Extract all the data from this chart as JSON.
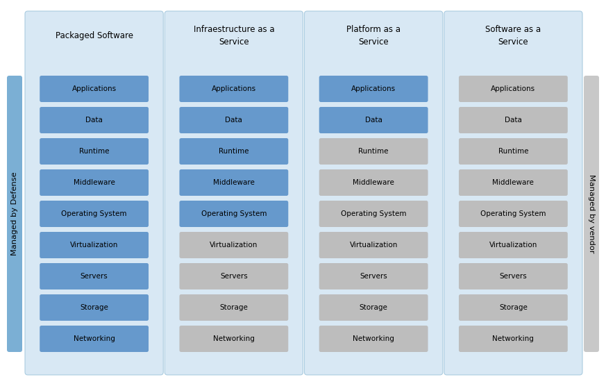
{
  "columns": [
    {
      "title": "Packaged Software",
      "items": [
        "Applications",
        "Data",
        "Runtime",
        "Middleware",
        "Operating System",
        "Virtualization",
        "Servers",
        "Storage",
        "Networking"
      ],
      "blue_count": 9
    },
    {
      "title": "Infraestructure as a\nService",
      "items": [
        "Applications",
        "Data",
        "Runtime",
        "Middleware",
        "Operating System",
        "Virtualization",
        "Servers",
        "Storage",
        "Networking"
      ],
      "blue_count": 5
    },
    {
      "title": "Platform as a\nService",
      "items": [
        "Applications",
        "Data",
        "Runtime",
        "Middleware",
        "Operating System",
        "Virtualization",
        "Servers",
        "Storage",
        "Networking"
      ],
      "blue_count": 2
    },
    {
      "title": "Software as a\nService",
      "items": [
        "Applications",
        "Data",
        "Runtime",
        "Middleware",
        "Operating System",
        "Virtualization",
        "Servers",
        "Storage",
        "Networking"
      ],
      "blue_count": 0
    }
  ],
  "blue_box_color": "#6699CC",
  "gray_box_color": "#BDBDBD",
  "col_bg_color": "#D8E8F4",
  "left_bar_color": "#7BAFD4",
  "right_bar_color": "#C8C8C8",
  "left_bar_label": "Managed by Defense",
  "right_bar_label": "Managed by vendor",
  "box_text_color": "#000000",
  "title_text_color": "#000000",
  "background_color": "#FFFFFF",
  "fig_width": 8.73,
  "fig_height": 5.56,
  "dpi": 100
}
